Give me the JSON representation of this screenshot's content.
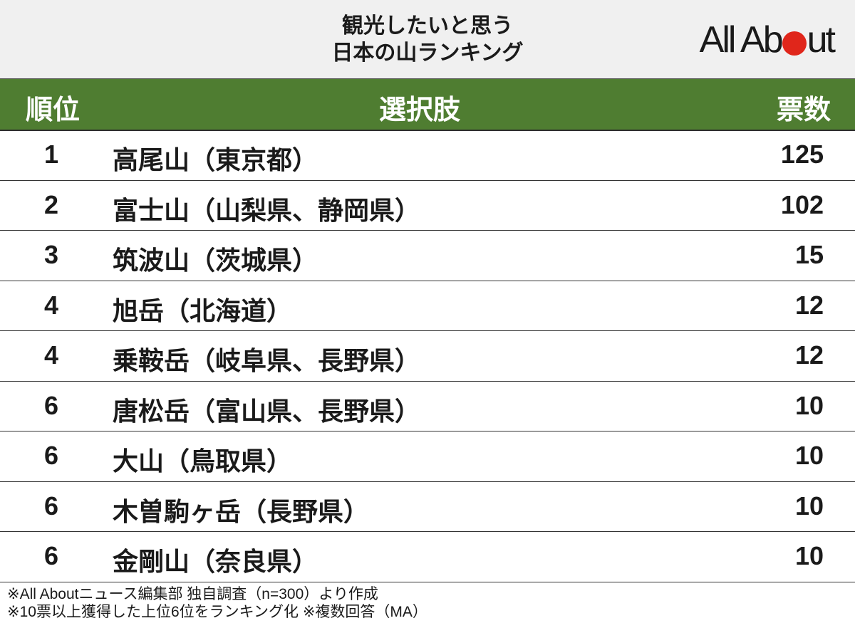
{
  "header": {
    "title_line1": "観光したいと思う",
    "title_line2": "日本の山ランキング",
    "logo": "All About",
    "logo_dot_color": "#e0261b"
  },
  "table": {
    "header_color": "#4f7d31",
    "columns": [
      "順位",
      "選択肢",
      "票数"
    ],
    "rows": [
      {
        "rank": "1",
        "name": "高尾山（東京都）",
        "votes": "125"
      },
      {
        "rank": "2",
        "name": "富士山（山梨県、静岡県）",
        "votes": "102"
      },
      {
        "rank": "3",
        "name": "筑波山（茨城県）",
        "votes": "15"
      },
      {
        "rank": "4",
        "name": "旭岳（北海道）",
        "votes": "12"
      },
      {
        "rank": "4",
        "name": "乗鞍岳（岐阜県、長野県）",
        "votes": "12"
      },
      {
        "rank": "6",
        "name": "唐松岳（富山県、長野県）",
        "votes": "10"
      },
      {
        "rank": "6",
        "name": "大山（鳥取県）",
        "votes": "10"
      },
      {
        "rank": "6",
        "name": "木曽駒ヶ岳（長野県）",
        "votes": "10"
      },
      {
        "rank": "6",
        "name": "金剛山（奈良県）",
        "votes": "10"
      }
    ]
  },
  "notes": [
    "※All Aboutニュース編集部 独自調査（n=300）より作成",
    "※10票以上獲得した上位6位をランキング化 ※複数回答（MA）"
  ]
}
